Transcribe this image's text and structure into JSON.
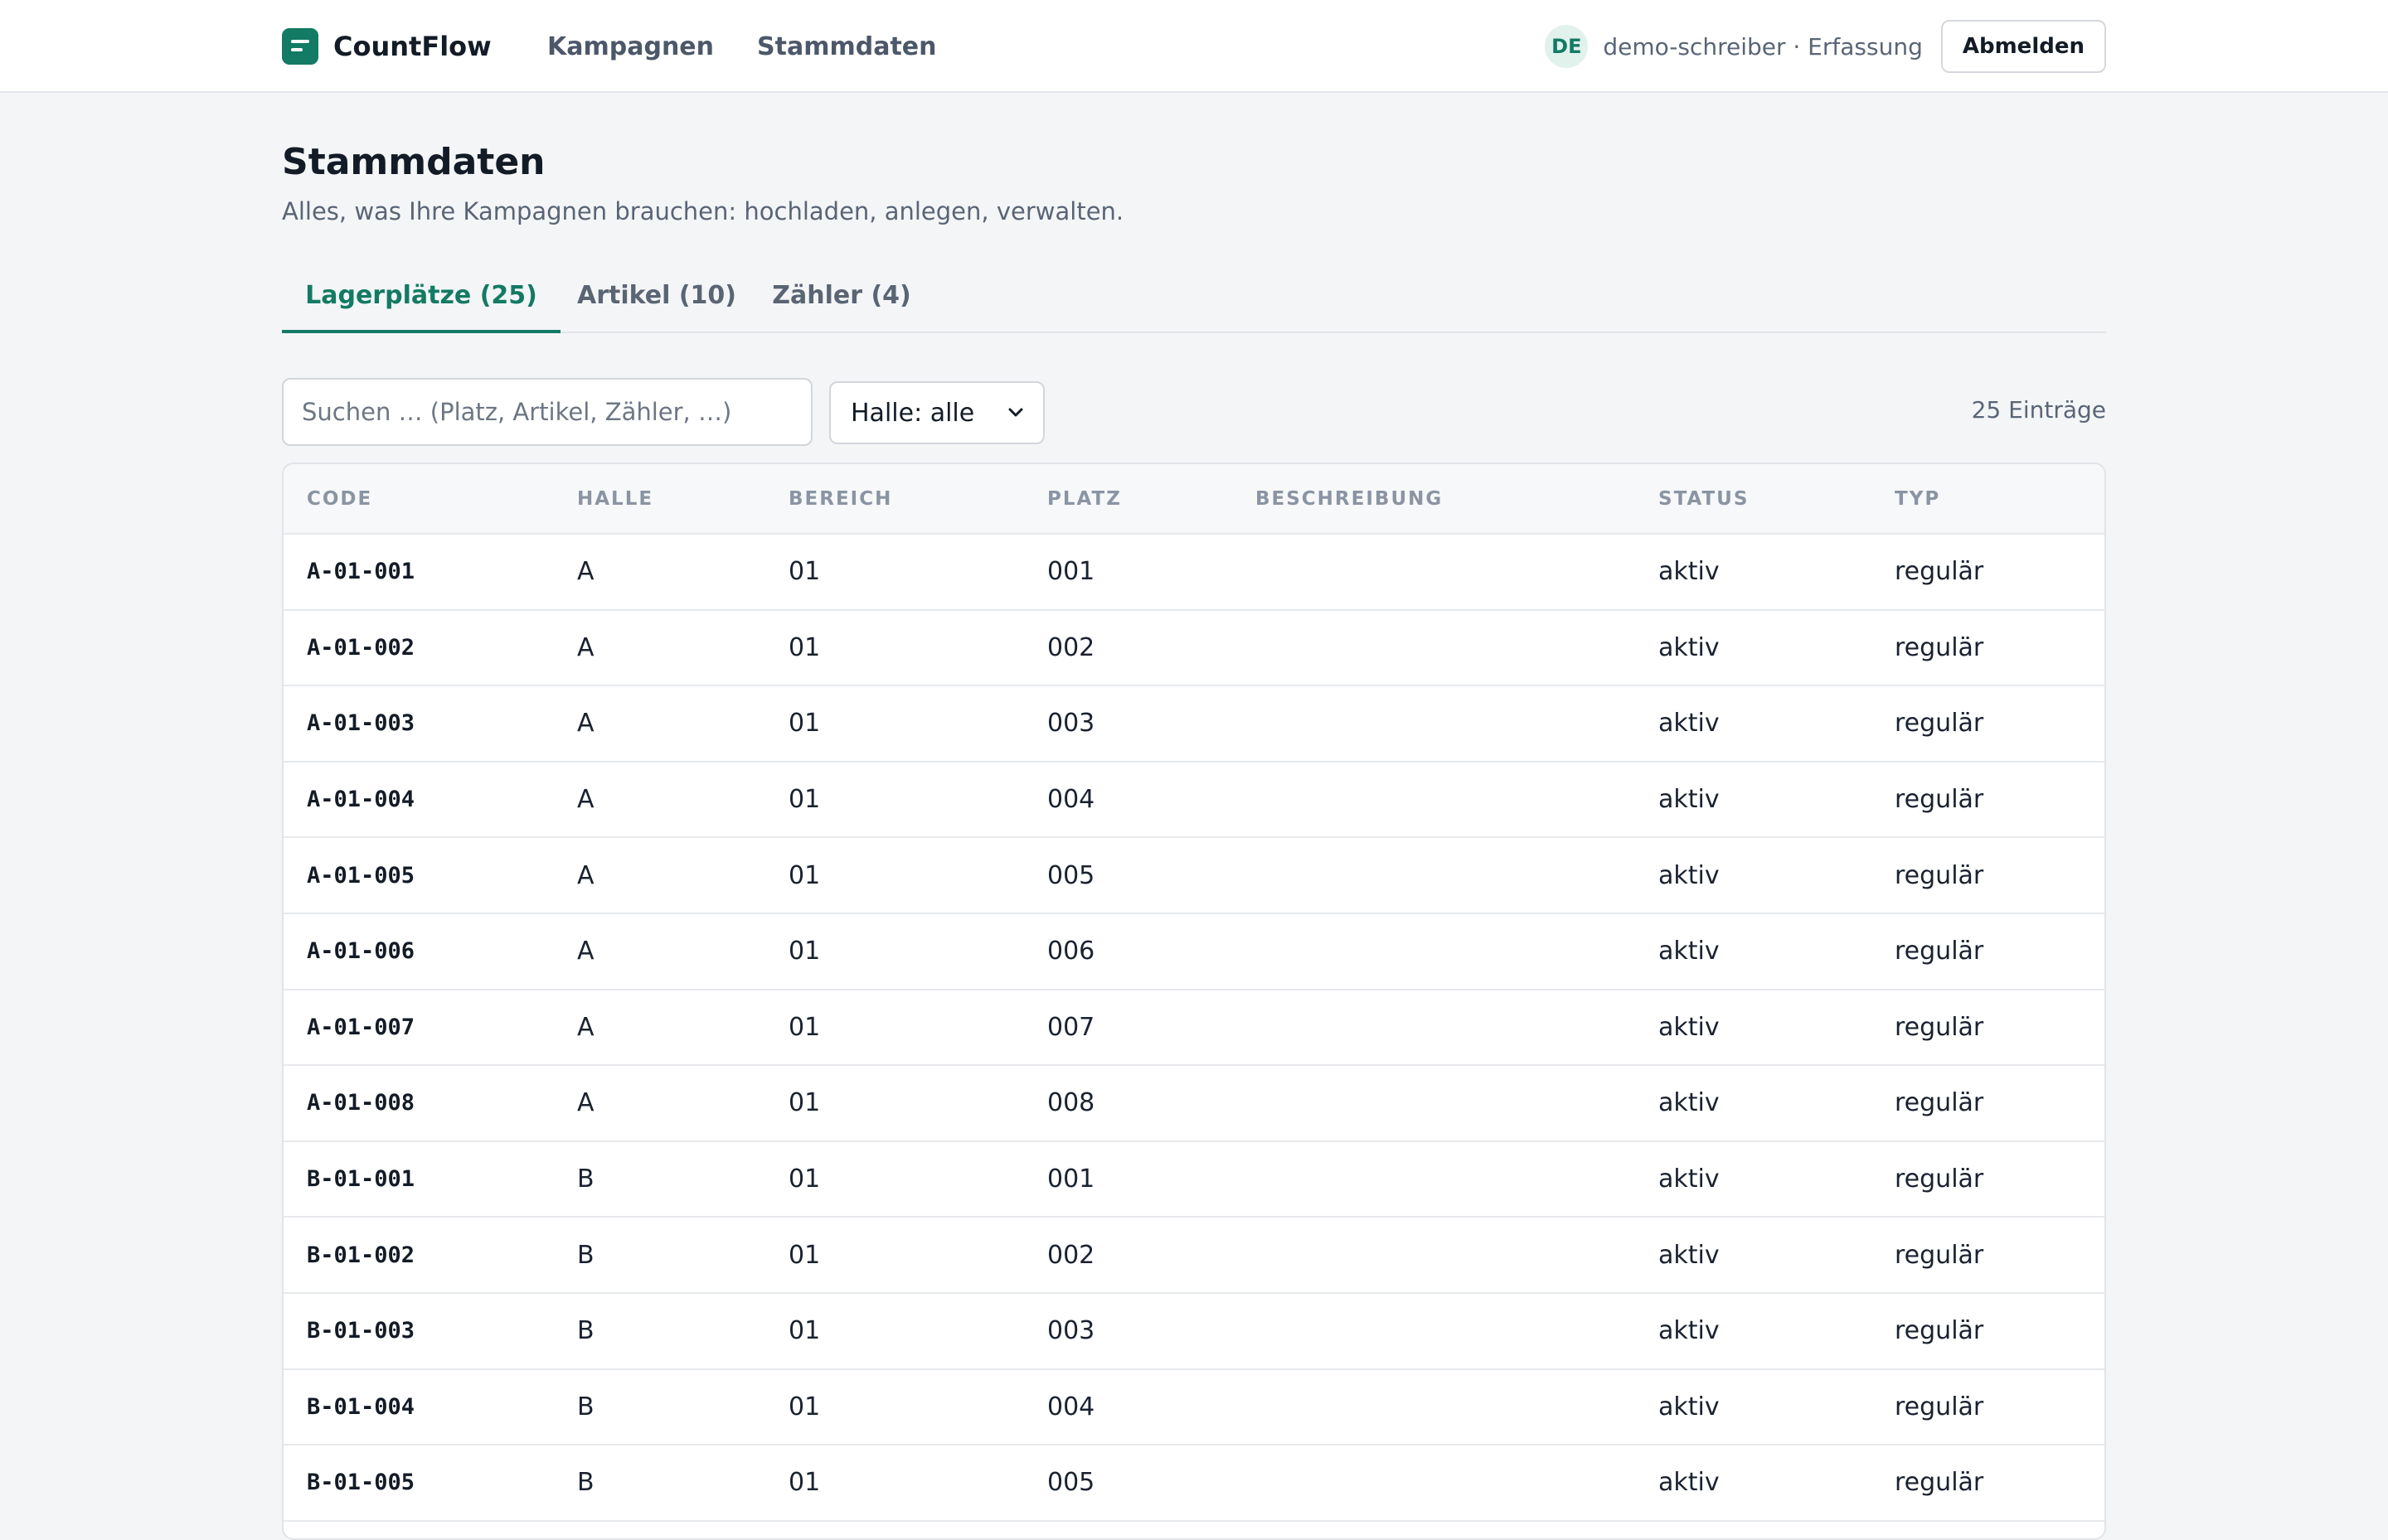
{
  "app": {
    "name": "CountFlow",
    "accent_color": "#137a63",
    "nav": [
      "Kampagnen",
      "Stammdaten"
    ],
    "user_initials": "DE",
    "user_info": "demo-schreiber · Erfassung",
    "logout_label": "Abmelden"
  },
  "page": {
    "title": "Stammdaten",
    "subtitle": "Alles, was Ihre Kampagnen brauchen: hochladen, anlegen, verwalten."
  },
  "tabs": [
    {
      "label": "Lagerplätze (25)",
      "active": true
    },
    {
      "label": "Artikel (10)",
      "active": false
    },
    {
      "label": "Zähler (4)",
      "active": false
    }
  ],
  "toolbar": {
    "search_placeholder": "Suchen … (Platz, Artikel, Zähler, …)",
    "hall_filter": "Halle: alle",
    "entry_count": "25 Einträge"
  },
  "table": {
    "columns": [
      "CODE",
      "HALLE",
      "BEREICH",
      "PLATZ",
      "BESCHREIBUNG",
      "STATUS",
      "TYP"
    ],
    "rows": [
      {
        "code": "A-01-001",
        "halle": "A",
        "bereich": "01",
        "platz": "001",
        "beschreibung": "",
        "status": "aktiv",
        "typ": "regulär"
      },
      {
        "code": "A-01-002",
        "halle": "A",
        "bereich": "01",
        "platz": "002",
        "beschreibung": "",
        "status": "aktiv",
        "typ": "regulär"
      },
      {
        "code": "A-01-003",
        "halle": "A",
        "bereich": "01",
        "platz": "003",
        "beschreibung": "",
        "status": "aktiv",
        "typ": "regulär"
      },
      {
        "code": "A-01-004",
        "halle": "A",
        "bereich": "01",
        "platz": "004",
        "beschreibung": "",
        "status": "aktiv",
        "typ": "regulär"
      },
      {
        "code": "A-01-005",
        "halle": "A",
        "bereich": "01",
        "platz": "005",
        "beschreibung": "",
        "status": "aktiv",
        "typ": "regulär"
      },
      {
        "code": "A-01-006",
        "halle": "A",
        "bereich": "01",
        "platz": "006",
        "beschreibung": "",
        "status": "aktiv",
        "typ": "regulär"
      },
      {
        "code": "A-01-007",
        "halle": "A",
        "bereich": "01",
        "platz": "007",
        "beschreibung": "",
        "status": "aktiv",
        "typ": "regulär"
      },
      {
        "code": "A-01-008",
        "halle": "A",
        "bereich": "01",
        "platz": "008",
        "beschreibung": "",
        "status": "aktiv",
        "typ": "regulär"
      },
      {
        "code": "B-01-001",
        "halle": "B",
        "bereich": "01",
        "platz": "001",
        "beschreibung": "",
        "status": "aktiv",
        "typ": "regulär"
      },
      {
        "code": "B-01-002",
        "halle": "B",
        "bereich": "01",
        "platz": "002",
        "beschreibung": "",
        "status": "aktiv",
        "typ": "regulär"
      },
      {
        "code": "B-01-003",
        "halle": "B",
        "bereich": "01",
        "platz": "003",
        "beschreibung": "",
        "status": "aktiv",
        "typ": "regulär"
      },
      {
        "code": "B-01-004",
        "halle": "B",
        "bereich": "01",
        "platz": "004",
        "beschreibung": "",
        "status": "aktiv",
        "typ": "regulär"
      },
      {
        "code": "B-01-005",
        "halle": "B",
        "bereich": "01",
        "platz": "005",
        "beschreibung": "",
        "status": "aktiv",
        "typ": "regulär"
      }
    ]
  }
}
